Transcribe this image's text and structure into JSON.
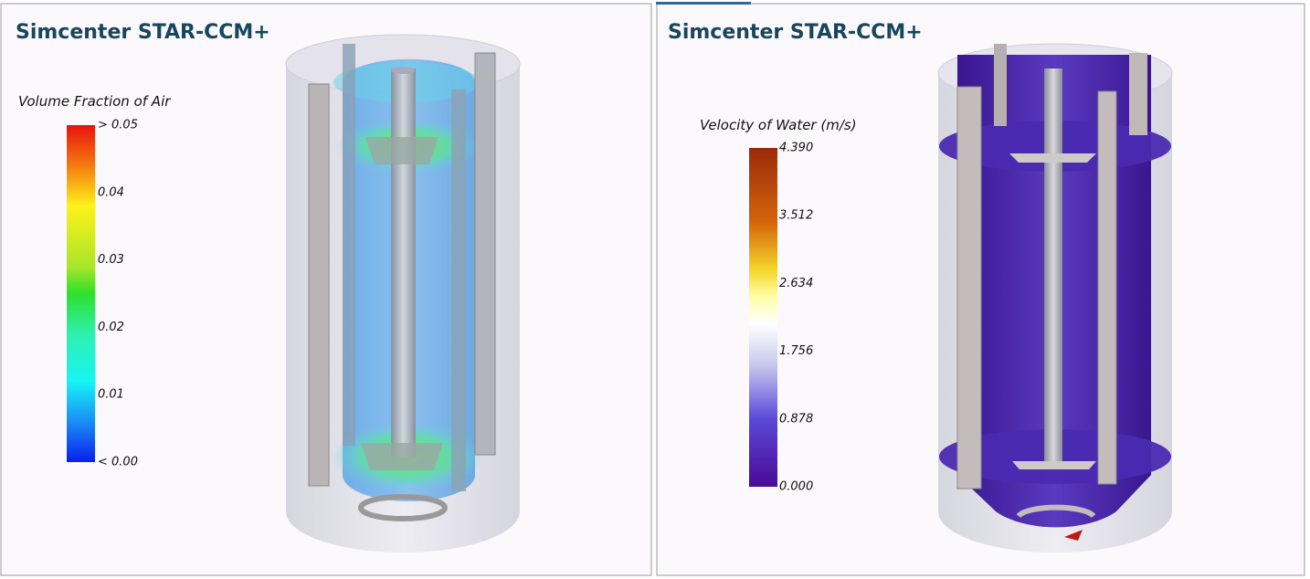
{
  "panels": [
    {
      "title": "Simcenter STAR-CCM+",
      "legend": {
        "title": "Volume Fraction of Air",
        "labels": [
          "> 0.05",
          "0.04",
          "0.03",
          "0.02",
          "0.01",
          "< 0.00"
        ]
      }
    },
    {
      "title": "Simcenter STAR-CCM+",
      "legend": {
        "title": "Velocity of Water (m/s)",
        "labels": [
          "4.390",
          "3.512",
          "2.634",
          "1.756",
          "0.878",
          "0.000"
        ]
      }
    }
  ]
}
